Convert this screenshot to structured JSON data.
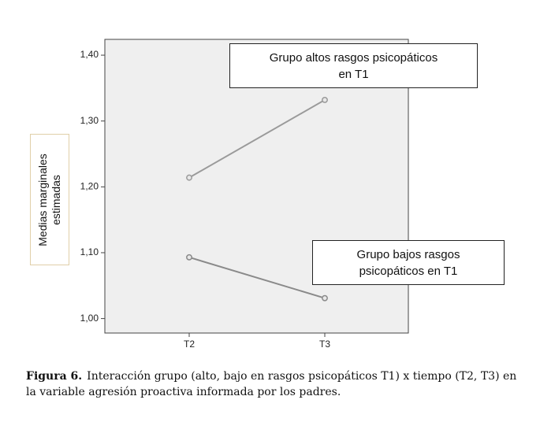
{
  "chart_data": {
    "type": "line",
    "categories": [
      "T2",
      "T3"
    ],
    "series": [
      {
        "color": "#9a9a9a",
        "values": [
          1.214,
          1.332
        ]
      },
      {
        "color": "#8a8a8a",
        "values": [
          1.093,
          1.031
        ]
      }
    ],
    "ylim": [
      0.978,
      1.424
    ],
    "yticks": [
      {
        "value": 1.0,
        "label": "1,00"
      },
      {
        "value": 1.1,
        "label": "1,10"
      },
      {
        "value": 1.2,
        "label": "1,20"
      },
      {
        "value": 1.3,
        "label": "1,30"
      },
      {
        "value": 1.4,
        "label": "1,40"
      }
    ],
    "ylabel": [
      "Medias marginales",
      "estimadas"
    ],
    "annotations": [
      {
        "lines": [
          "Grupo altos rasgos psicopáticos",
          "en T1"
        ]
      },
      {
        "lines": [
          "Grupo bajos rasgos",
          "psicopáticos en T1"
        ]
      }
    ],
    "caption": {
      "label": "Figura 6.",
      "text": "Interacción grupo (alto, bajo en rasgos psicopáticos T1) x tiempo (T2, T3) en la variable agresión proactiva informada por los padres."
    }
  }
}
